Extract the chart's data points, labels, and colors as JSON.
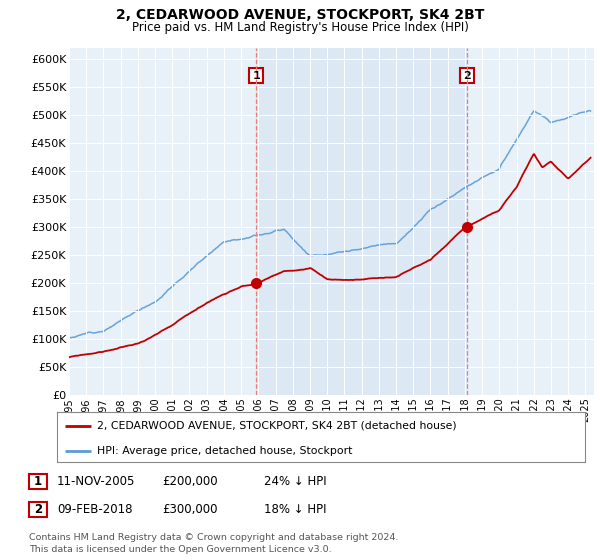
{
  "title": "2, CEDARWOOD AVENUE, STOCKPORT, SK4 2BT",
  "subtitle": "Price paid vs. HM Land Registry's House Price Index (HPI)",
  "ylabel_ticks": [
    "£0",
    "£50K",
    "£100K",
    "£150K",
    "£200K",
    "£250K",
    "£300K",
    "£350K",
    "£400K",
    "£450K",
    "£500K",
    "£550K",
    "£600K"
  ],
  "ytick_values": [
    0,
    50000,
    100000,
    150000,
    200000,
    250000,
    300000,
    350000,
    400000,
    450000,
    500000,
    550000,
    600000
  ],
  "ylim": [
    0,
    620000
  ],
  "xlim_start": 1995.0,
  "xlim_end": 2025.5,
  "hpi_color": "#5b9bd5",
  "price_color": "#c00000",
  "shade_color": "#dce9f5",
  "marker1_date": 2005.87,
  "marker1_price": 200000,
  "marker1_label": "1",
  "marker2_date": 2018.12,
  "marker2_price": 300000,
  "marker2_label": "2",
  "legend_line1": "2, CEDARWOOD AVENUE, STOCKPORT, SK4 2BT (detached house)",
  "legend_line2": "HPI: Average price, detached house, Stockport",
  "table_row1": [
    "1",
    "11-NOV-2005",
    "£200,000",
    "24% ↓ HPI"
  ],
  "table_row2": [
    "2",
    "09-FEB-2018",
    "£300,000",
    "18% ↓ HPI"
  ],
  "footer": "Contains HM Land Registry data © Crown copyright and database right 2024.\nThis data is licensed under the Open Government Licence v3.0.",
  "bg_color": "#ffffff",
  "plot_bg": "#e8f0f8"
}
